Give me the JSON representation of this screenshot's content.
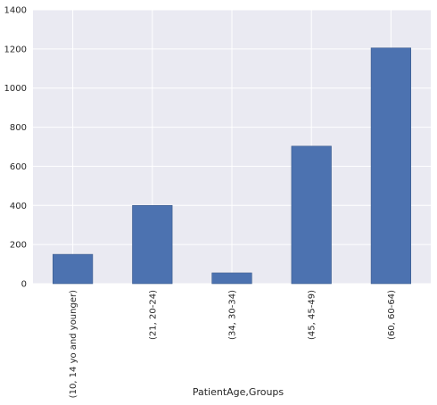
{
  "chart_data": {
    "type": "bar",
    "xlabel": "PatientAge,Groups",
    "ylabel": "",
    "categories": [
      "(10, 14 yo and younger)",
      "(21, 20-24)",
      "(34, 30-34)",
      "(45, 45-49)",
      "(60, 60-64)"
    ],
    "values": [
      150,
      400,
      55,
      703,
      1205
    ],
    "ylim": [
      0,
      1400
    ],
    "yticks": [
      "0",
      "200",
      "400",
      "600",
      "800",
      "1000",
      "1200",
      "1400"
    ],
    "grid": true,
    "legend": "none",
    "colors": {
      "bar": "#4c72b0",
      "background": "#eaeaf2",
      "grid": "#ffffff"
    }
  }
}
